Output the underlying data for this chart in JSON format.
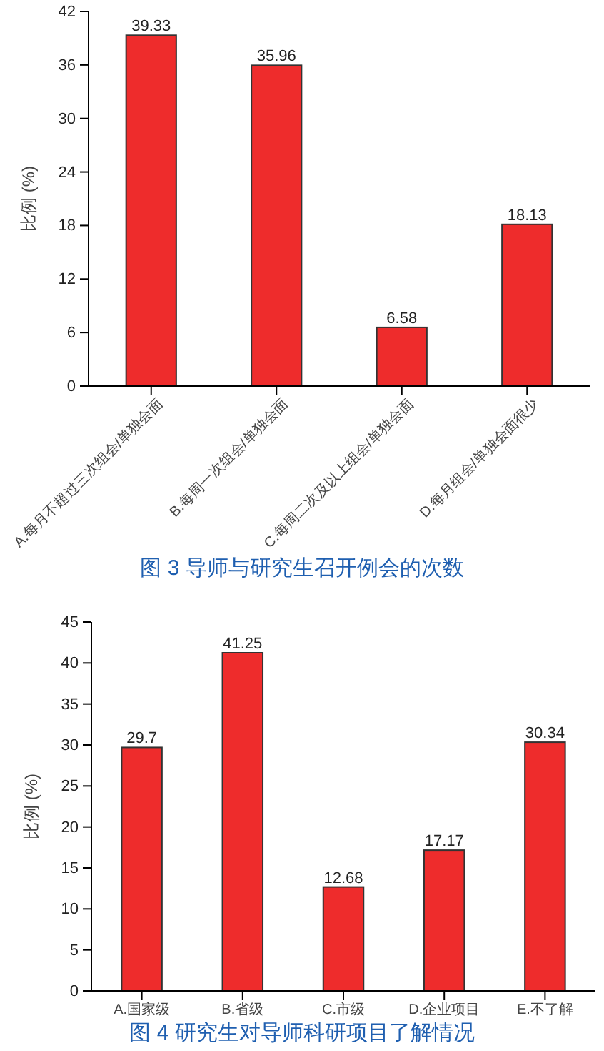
{
  "chart_data": [
    {
      "type": "bar",
      "title": "图 3 导师与研究生召开例会的次数",
      "ylabel": "比例 (%)",
      "categories": [
        "A.每月不超过三次组会/单独会面",
        "B.每周一次组会/单独会面",
        "C.每周二次及以上组会/单独会面",
        "D.每月组会/单独会面很少"
      ],
      "values": [
        39.33,
        35.96,
        6.58,
        18.13
      ],
      "color": "#ee2c2c",
      "ylim": [
        0,
        42
      ],
      "yticks": [
        0,
        6,
        12,
        18,
        24,
        30,
        36,
        42
      ],
      "data_labels": true
    },
    {
      "type": "bar",
      "title": "图 4 研究生对导师科研项目了解情况",
      "ylabel": "比例 (%)",
      "categories": [
        "A.国家级",
        "B.省级",
        "C.市级",
        "D.企业项目",
        "E.不了解"
      ],
      "values": [
        29.7,
        41.25,
        12.68,
        17.17,
        30.34
      ],
      "color": "#ee2c2c",
      "ylim": [
        0,
        45
      ],
      "yticks": [
        0,
        5,
        10,
        15,
        20,
        25,
        30,
        35,
        40,
        45
      ],
      "data_labels": true
    }
  ]
}
